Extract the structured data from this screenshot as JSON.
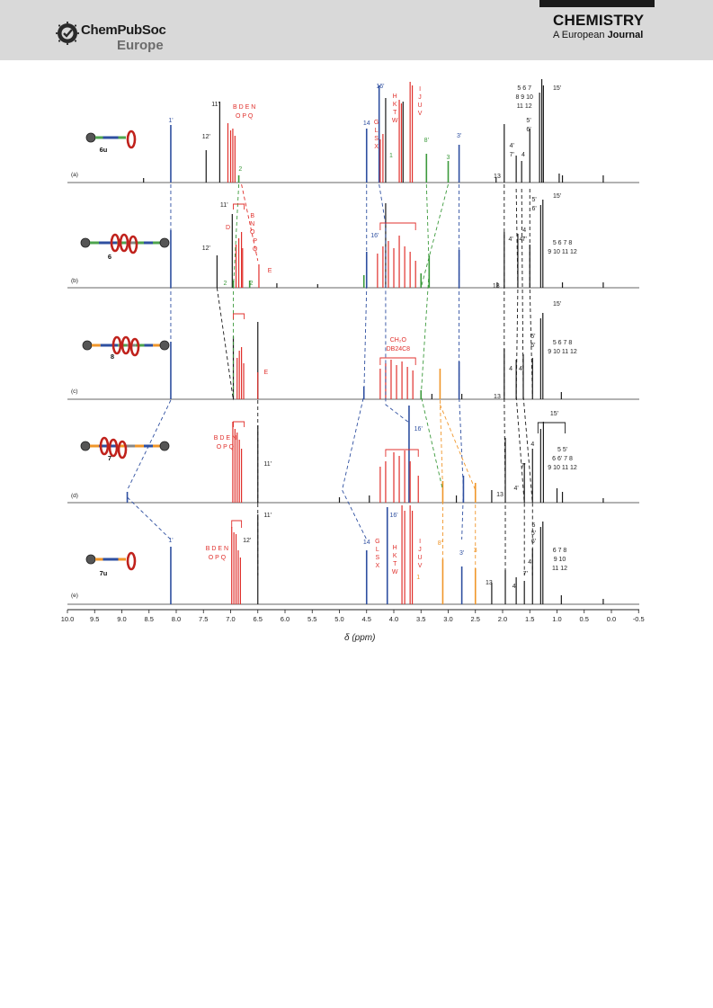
{
  "header": {
    "brand": "ChemPubSoc",
    "brand_sub": "Europe",
    "journal_title": "CHEMISTRY",
    "journal_sub_prefix": "A European",
    "journal_sub_bold": "Journal"
  },
  "figure": {
    "xaxis_label": "δ (ppm)",
    "ticks": [
      "10.0",
      "9.5",
      "9.0",
      "8.5",
      "8.0",
      "7.5",
      "7.0",
      "6.5",
      "6.0",
      "5.5",
      "5.0",
      "4.5",
      "4.0",
      "3.5",
      "3.0",
      "2.5",
      "2.0",
      "1.5",
      "1.0",
      "0.5",
      "0.0",
      "-0.5"
    ],
    "panels": [
      {
        "id": "(a)",
        "compound": "6u"
      },
      {
        "id": "(b)",
        "compound": "6"
      },
      {
        "id": "(c)",
        "compound": "8"
      },
      {
        "id": "(d)",
        "compound": "7"
      },
      {
        "id": "(e)",
        "compound": "7u"
      }
    ],
    "labels": {
      "a": {
        "l1": "1'",
        "l12": "12'",
        "l11": "11'",
        "red1": "B D E N",
        "red2": "O P Q",
        "g2": "2",
        "b14": "14",
        "b16": "16'",
        "rG": [
          "G",
          "L",
          "S",
          "X"
        ],
        "rH": [
          "H",
          "K",
          "T",
          "W"
        ],
        "rI": [
          "I",
          "J",
          "U",
          "V"
        ],
        "k1": "1",
        "g8": "8'",
        "g3": "3",
        "b3": "3'",
        "k13": "13",
        "k567": "5 6 7",
        "k8910": "8 9 10",
        "k1112": "11 12",
        "k4p": "4'",
        "k7p": "7'",
        "k4": "4",
        "k5p": "5'",
        "k6p": "6'",
        "k15": "15'"
      },
      "b": {
        "k11": "11'",
        "k12": "12'",
        "rD": "D",
        "rBNO": [
          "B",
          "N",
          "O"
        ],
        "rPQ": [
          "P",
          "Q"
        ],
        "rE": "E",
        "g2a": "2",
        "g2b": "2",
        "b16": "16'",
        "k13": "13",
        "k4p": "4'",
        "k4pp": "4'",
        "k4": "4",
        "k7p": "7'",
        "k5p": "5'",
        "k6p": "6'",
        "k15": "15'",
        "k5678": "5 6 7 8",
        "k9to12": "9 10 11 12"
      },
      "c": {
        "rE": "E",
        "rCH2O": "CH₂O",
        "rDB": "DB24C8",
        "k13": "13",
        "k4": "4",
        "k4p": "4'",
        "k5p": "5'",
        "k6p": "6'",
        "k15": "15'",
        "k5678": "5 6 7 8",
        "k9to12": "9 10 11 12"
      },
      "d": {
        "red1": "B D E N",
        "red2": "O P Q",
        "k11": "11'",
        "b16": "16'",
        "k13": "13",
        "k4p": "4'",
        "k4": "4",
        "k7p": "7'",
        "k15": "15'",
        "k55": "5 5'",
        "k66": "6 6' 7 8",
        "k9to12": "9 10 11 12"
      },
      "e": {
        "b1": "1'",
        "red1": "B D E N",
        "red2": "O P Q",
        "k11": "11'",
        "k12": "12'",
        "b14": "14",
        "b16": "16'",
        "rG": [
          "G",
          "L",
          "S",
          "X"
        ],
        "rH": [
          "H",
          "K",
          "T",
          "W"
        ],
        "rI": [
          "I",
          "J",
          "U",
          "V"
        ],
        "o1": "1",
        "o8": "8'",
        "o3": "3",
        "b3": "3'",
        "k13": "13",
        "k4p": "4'",
        "k7p": "7'",
        "k4": "4",
        "k5": "5",
        "k5p": "5'",
        "k6p": "6'",
        "k678": "6 7 8",
        "k910": "9 10",
        "k1112": "11 12"
      }
    },
    "colors": {
      "black": "#1a1a1a",
      "blue": "#2e4fa0",
      "red": "#e0302c",
      "green": "#3c9a3c",
      "orange": "#f0962a"
    }
  }
}
